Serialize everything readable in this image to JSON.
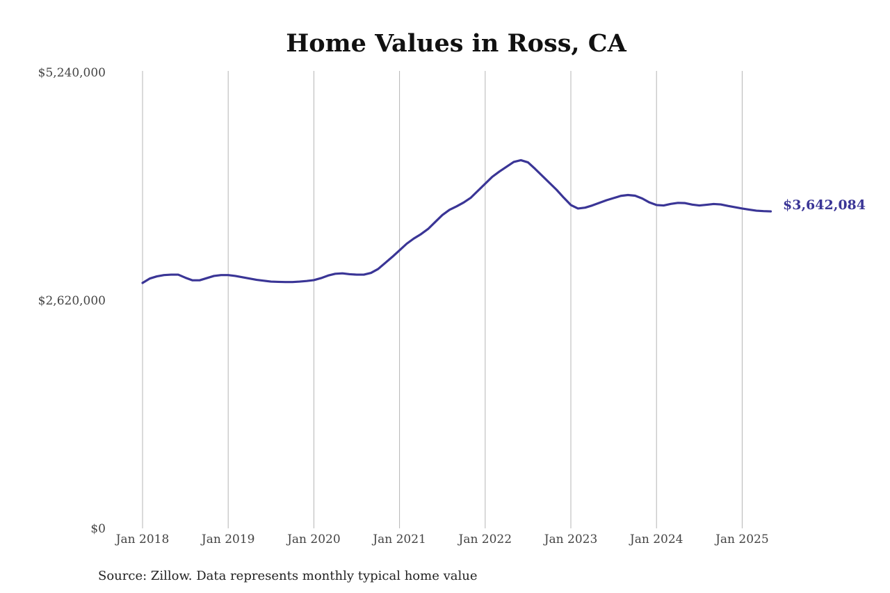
{
  "chart_data": {
    "type": "line",
    "title": "Home Values in Ross, CA",
    "xlabel": "",
    "ylabel": "",
    "ylim": [
      0,
      5240000
    ],
    "y_ticks": [
      {
        "value": 0,
        "label": "$0"
      },
      {
        "value": 2620000,
        "label": "$2,620,000"
      },
      {
        "value": 5240000,
        "label": "$5,240,000"
      }
    ],
    "x_ticks": [
      {
        "value": "2018-01",
        "label": "Jan 2018"
      },
      {
        "value": "2019-01",
        "label": "Jan 2019"
      },
      {
        "value": "2020-01",
        "label": "Jan 2020"
      },
      {
        "value": "2021-01",
        "label": "Jan 2021"
      },
      {
        "value": "2022-01",
        "label": "Jan 2022"
      },
      {
        "value": "2023-01",
        "label": "Jan 2023"
      },
      {
        "value": "2024-01",
        "label": "Jan 2024"
      },
      {
        "value": "2025-01",
        "label": "Jan 2025"
      }
    ],
    "grid": {
      "vertical": true,
      "horizontal": false
    },
    "line_color": "#3a3596",
    "end_label": "$3,642,084",
    "series": [
      {
        "name": "",
        "x": [
          "2018-01",
          "2018-02",
          "2018-03",
          "2018-04",
          "2018-05",
          "2018-06",
          "2018-07",
          "2018-08",
          "2018-09",
          "2018-10",
          "2018-11",
          "2018-12",
          "2019-01",
          "2019-02",
          "2019-03",
          "2019-04",
          "2019-05",
          "2019-06",
          "2019-07",
          "2019-08",
          "2019-09",
          "2019-10",
          "2019-11",
          "2019-12",
          "2020-01",
          "2020-02",
          "2020-03",
          "2020-04",
          "2020-05",
          "2020-06",
          "2020-07",
          "2020-08",
          "2020-09",
          "2020-10",
          "2020-11",
          "2020-12",
          "2021-01",
          "2021-02",
          "2021-03",
          "2021-04",
          "2021-05",
          "2021-06",
          "2021-07",
          "2021-08",
          "2021-09",
          "2021-10",
          "2021-11",
          "2021-12",
          "2022-01",
          "2022-02",
          "2022-03",
          "2022-04",
          "2022-05",
          "2022-06",
          "2022-07",
          "2022-08",
          "2022-09",
          "2022-10",
          "2022-11",
          "2022-12",
          "2023-01",
          "2023-02",
          "2023-03",
          "2023-04",
          "2023-05",
          "2023-06",
          "2023-07",
          "2023-08",
          "2023-09",
          "2023-10",
          "2023-11",
          "2023-12",
          "2024-01",
          "2024-02",
          "2024-03",
          "2024-04",
          "2024-05",
          "2024-06",
          "2024-07",
          "2024-08",
          "2024-09",
          "2024-10",
          "2024-11",
          "2024-12",
          "2025-01",
          "2025-02",
          "2025-03",
          "2025-04",
          "2025-05"
        ],
        "values": [
          2820000,
          2870000,
          2895000,
          2910000,
          2915000,
          2915000,
          2880000,
          2850000,
          2850000,
          2875000,
          2900000,
          2910000,
          2910000,
          2900000,
          2885000,
          2870000,
          2855000,
          2845000,
          2835000,
          2832000,
          2830000,
          2830000,
          2835000,
          2842000,
          2852000,
          2875000,
          2905000,
          2925000,
          2930000,
          2920000,
          2915000,
          2915000,
          2935000,
          2980000,
          3050000,
          3120000,
          3195000,
          3270000,
          3330000,
          3380000,
          3440000,
          3520000,
          3600000,
          3660000,
          3700000,
          3745000,
          3800000,
          3880000,
          3960000,
          4040000,
          4100000,
          4155000,
          4210000,
          4230000,
          4205000,
          4130000,
          4050000,
          3970000,
          3890000,
          3800000,
          3715000,
          3675000,
          3685000,
          3710000,
          3740000,
          3770000,
          3795000,
          3820000,
          3830000,
          3822000,
          3790000,
          3745000,
          3715000,
          3710000,
          3728000,
          3740000,
          3737000,
          3720000,
          3710000,
          3718000,
          3727000,
          3722000,
          3705000,
          3690000,
          3675000,
          3662000,
          3650000,
          3645000,
          3642084
        ]
      }
    ],
    "source": "Source: Zillow. Data represents monthly typical home value"
  }
}
